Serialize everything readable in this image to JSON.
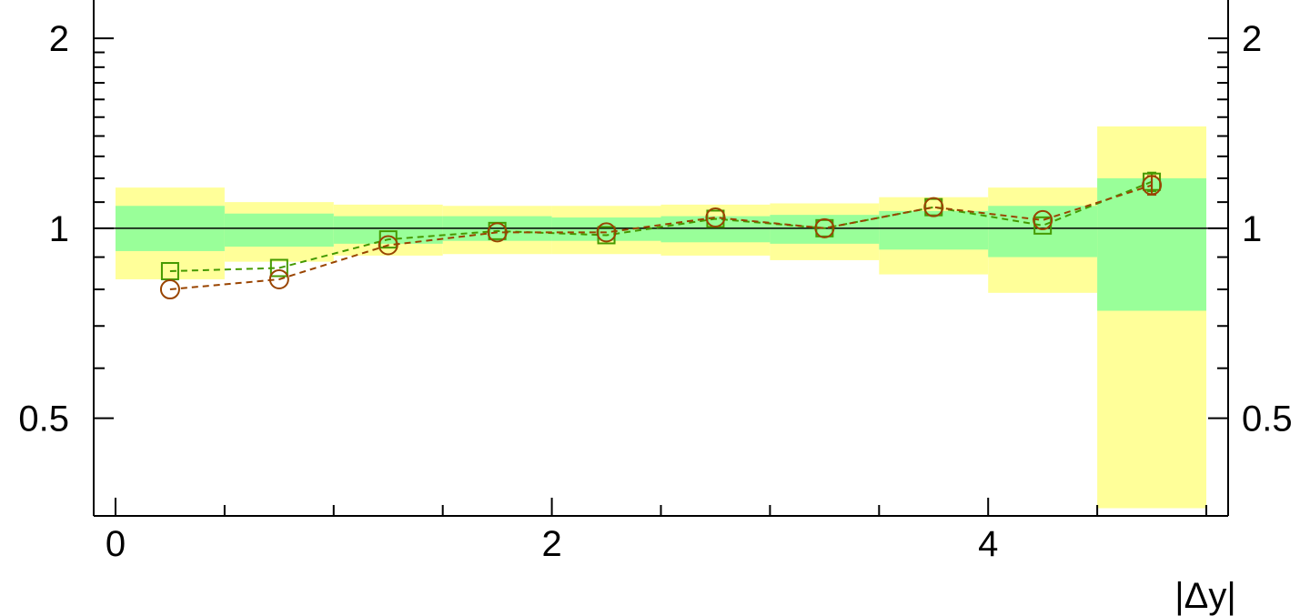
{
  "chart_data": {
    "type": "line",
    "xlabel": "|Δy|",
    "ylabel": "",
    "xlim": [
      -0.1,
      5.1
    ],
    "ylim": [
      0.35,
      2.3
    ],
    "ylog": true,
    "grid": false,
    "reference_line": 1,
    "x_ticks": [
      {
        "value": 0,
        "label": "0"
      },
      {
        "value": 2,
        "label": "2"
      },
      {
        "value": 4,
        "label": "4"
      }
    ],
    "x_minor_ticks": [
      0.5,
      1,
      1.5,
      2.5,
      3,
      3.5,
      4.5,
      5
    ],
    "y_ticks": [
      {
        "value": 0.5,
        "label": "0.5"
      },
      {
        "value": 1,
        "label": "1"
      },
      {
        "value": 2,
        "label": "2"
      }
    ],
    "y_minor_ticks": [
      0.6,
      0.7,
      0.8,
      0.9,
      1.1,
      1.2,
      1.3,
      1.4,
      1.5,
      1.6,
      1.7,
      1.8,
      1.9
    ],
    "bands": {
      "bin_edges": [
        0,
        0.5,
        1,
        1.5,
        2,
        2.5,
        3,
        3.5,
        4,
        4.5,
        5
      ],
      "inner": {
        "color": "#99ff99",
        "low": [
          0.92,
          0.935,
          0.945,
          0.955,
          0.955,
          0.95,
          0.945,
          0.925,
          0.9,
          0.74
        ],
        "high": [
          1.085,
          1.055,
          1.045,
          1.045,
          1.04,
          1.045,
          1.05,
          1.065,
          1.085,
          1.2
        ]
      },
      "outer": {
        "color": "#ffff99",
        "low": [
          0.83,
          0.885,
          0.905,
          0.91,
          0.91,
          0.905,
          0.89,
          0.845,
          0.79,
          0.36
        ],
        "high": [
          1.16,
          1.1,
          1.09,
          1.085,
          1.085,
          1.09,
          1.095,
          1.12,
          1.16,
          1.45
        ]
      }
    },
    "series": [
      {
        "marker": "square",
        "color": "#449900",
        "x": [
          0.25,
          0.75,
          1.25,
          1.75,
          2.25,
          2.75,
          3.25,
          3.75,
          4.25,
          4.75
        ],
        "y": [
          0.855,
          0.865,
          0.96,
          0.99,
          0.975,
          1.035,
          1.0,
          1.08,
          1.01,
          1.185
        ],
        "err": [
          0,
          0,
          0,
          0,
          0,
          0,
          0,
          0,
          0,
          0.04
        ]
      },
      {
        "marker": "circle",
        "color": "#994400",
        "x": [
          0.25,
          0.75,
          1.25,
          1.75,
          2.25,
          2.75,
          3.25,
          3.75,
          4.25,
          4.75
        ],
        "y": [
          0.8,
          0.83,
          0.94,
          0.985,
          0.985,
          1.04,
          1.0,
          1.08,
          1.03,
          1.17
        ],
        "err": [
          0,
          0,
          0,
          0,
          0,
          0,
          0,
          0,
          0,
          0.04
        ]
      }
    ]
  }
}
